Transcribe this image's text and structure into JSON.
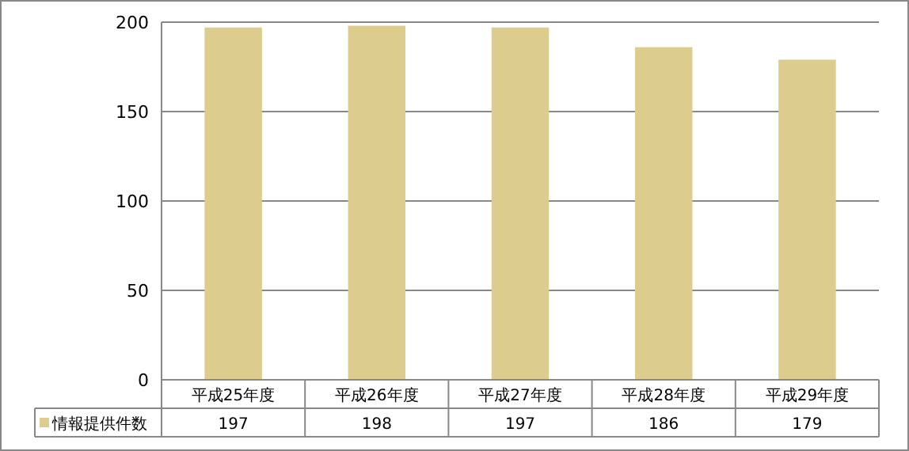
{
  "chart_data": {
    "type": "bar",
    "categories": [
      "平成25年度",
      "平成26年度",
      "平成27年度",
      "平成28年度",
      "平成29年度"
    ],
    "series": [
      {
        "name": "情報提供件数",
        "color": "#dccd8e",
        "values": [
          197,
          198,
          197,
          186,
          179
        ]
      }
    ],
    "ylim": [
      0,
      200
    ],
    "yticks": [
      0,
      50,
      100,
      150,
      200
    ],
    "grid": "y",
    "data_labels": true,
    "legend": "bottom left"
  }
}
